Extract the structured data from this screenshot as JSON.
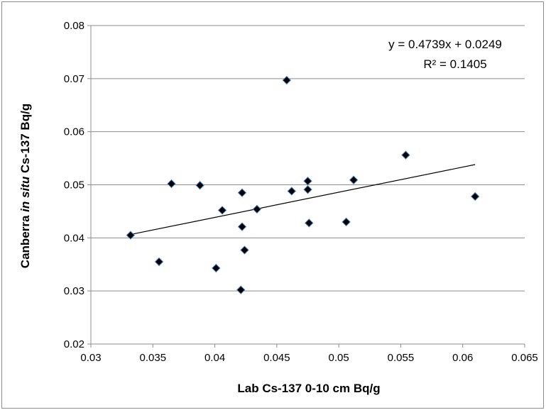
{
  "chart_data": {
    "type": "scatter",
    "title": "",
    "xlabel": "Lab Cs-137 0-10 cm Bq/g",
    "ylabel_parts": [
      {
        "text": "Canberra ",
        "italic": false
      },
      {
        "text": "in situ",
        "italic": true
      },
      {
        "text": " Cs-137 Bq/g",
        "italic": false
      }
    ],
    "xlim": [
      0.03,
      0.065
    ],
    "ylim": [
      0.02,
      0.08
    ],
    "xticks": [
      0.03,
      0.035,
      0.04,
      0.045,
      0.05,
      0.055,
      0.06,
      0.065
    ],
    "xtick_labels": [
      "0.03",
      "0.035",
      "0.04",
      "0.045",
      "0.05",
      "0.055",
      "0.06",
      "0.065"
    ],
    "yticks": [
      0.02,
      0.03,
      0.04,
      0.05,
      0.06,
      0.07,
      0.08
    ],
    "ytick_labels": [
      "0.02",
      "0.03",
      "0.04",
      "0.05",
      "0.06",
      "0.07",
      "0.08"
    ],
    "grid": {
      "horizontal": true,
      "vertical": false
    },
    "legend": "none",
    "marker": "diamond",
    "marker_color": "#000000",
    "marker_edge_color": "#4f81bd",
    "series": [
      {
        "x": [
          0.0332,
          0.0355,
          0.0365,
          0.0388,
          0.0401,
          0.0406,
          0.0421,
          0.0422,
          0.0422,
          0.0424,
          0.0434,
          0.0458,
          0.0462,
          0.0475,
          0.0475,
          0.0476,
          0.0506,
          0.0512,
          0.0554,
          0.061
        ],
        "y": [
          0.0405,
          0.0355,
          0.0502,
          0.0499,
          0.0343,
          0.0452,
          0.0302,
          0.0421,
          0.0485,
          0.0377,
          0.0454,
          0.0697,
          0.0488,
          0.0491,
          0.0507,
          0.0428,
          0.043,
          0.0509,
          0.0556,
          0.0478
        ]
      }
    ],
    "trendline": {
      "type": "linear",
      "slope": 0.4739,
      "intercept": 0.0249,
      "x_range": [
        0.0332,
        0.061
      ],
      "color": "#000000"
    },
    "annotations": {
      "equation": "y = 0.4739x + 0.0249",
      "r_squared": "R² = 0.1405"
    }
  }
}
